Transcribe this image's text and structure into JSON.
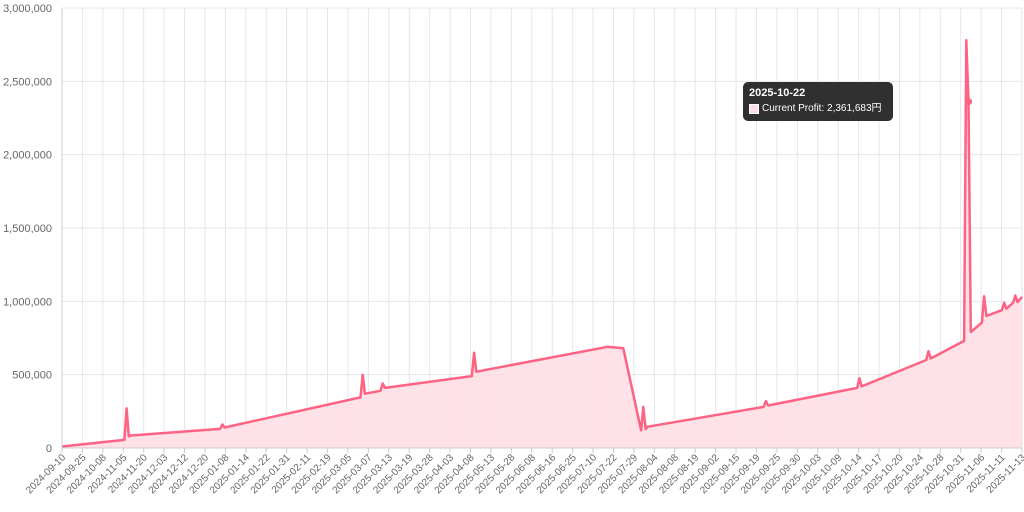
{
  "colors": {
    "line": "#ff6384",
    "fill": "#ffdde4",
    "grid": "#e6e6e6",
    "tooltip_bg": "#1f1f1f"
  },
  "chart_data": {
    "type": "area",
    "title": "",
    "xlabel": "",
    "ylabel": "",
    "ylim": [
      0,
      3000000
    ],
    "y_ticks": [
      "0",
      "500,000",
      "1,000,000",
      "1,500,000",
      "2,000,000",
      "2,500,000",
      "3,000,000"
    ],
    "y_tick_values": [
      0,
      500000,
      1000000,
      1500000,
      2000000,
      2500000,
      3000000
    ],
    "x_tick_labels": [
      "2024-09-10",
      "2024-09-25",
      "2024-10-08",
      "2024-11-05",
      "2024-11-20",
      "2024-12-03",
      "2024-12-12",
      "2024-12-20",
      "2025-01-08",
      "2025-01-14",
      "2025-01-22",
      "2025-01-31",
      "2025-02-11",
      "2025-02-19",
      "2025-03-05",
      "2025-03-07",
      "2025-03-13",
      "2025-03-19",
      "2025-03-28",
      "2025-04-03",
      "2025-04-08",
      "2025-05-13",
      "2025-05-28",
      "2025-06-08",
      "2025-06-16",
      "2025-06-25",
      "2025-07-10",
      "2025-07-22",
      "2025-07-29",
      "2025-08-04",
      "2025-08-08",
      "2025-08-19",
      "2025-09-02",
      "2025-09-15",
      "2025-09-19",
      "2025-09-25",
      "2025-09-30",
      "2025-10-03",
      "2025-10-09",
      "2025-10-14",
      "2025-10-17",
      "2025-10-20",
      "2025-10-24",
      "2025-10-28",
      "2025-10-31",
      "2025-11-06",
      "2025-11-11",
      "2025-11-13"
    ],
    "series": [
      {
        "name": "Current Profit",
        "x": [
          "2024-09-10",
          "2024-10-08",
          "2024-10-09",
          "2024-10-10",
          "2024-10-11",
          "2024-11-20",
          "2024-11-21",
          "2024-11-22",
          "2025-01-22",
          "2025-01-23",
          "2025-01-24",
          "2025-01-31",
          "2025-02-01",
          "2025-02-02",
          "2025-03-13",
          "2025-03-14",
          "2025-03-15",
          "2025-05-13",
          "2025-05-20",
          "2025-05-28",
          "2025-05-29",
          "2025-05-30",
          "2025-05-31",
          "2025-07-22",
          "2025-07-23",
          "2025-07-24",
          "2025-09-02",
          "2025-09-03",
          "2025-09-04",
          "2025-10-03",
          "2025-10-04",
          "2025-10-05",
          "2025-10-20",
          "2025-10-21",
          "2025-10-22",
          "2025-10-23",
          "2025-10-28",
          "2025-10-29",
          "2025-10-30",
          "2025-11-06",
          "2025-11-07",
          "2025-11-08",
          "2025-11-11",
          "2025-11-12",
          "2025-11-13",
          "2025-11-15"
        ],
        "values": [
          10000,
          55000,
          270000,
          80000,
          85000,
          130000,
          160000,
          140000,
          345000,
          500000,
          370000,
          390000,
          440000,
          410000,
          490000,
          650000,
          520000,
          690000,
          680000,
          120000,
          280000,
          130000,
          145000,
          280000,
          320000,
          290000,
          410000,
          475000,
          420000,
          600000,
          660000,
          610000,
          730000,
          2780000,
          2361683,
          790000,
          855000,
          1035000,
          900000,
          940000,
          990000,
          950000,
          990000,
          1040000,
          995000,
          1030000
        ]
      }
    ],
    "tooltip": {
      "date": "2025-10-22",
      "label": "Current Profit",
      "value_text": "2,361,683円",
      "value": 2361683
    }
  }
}
